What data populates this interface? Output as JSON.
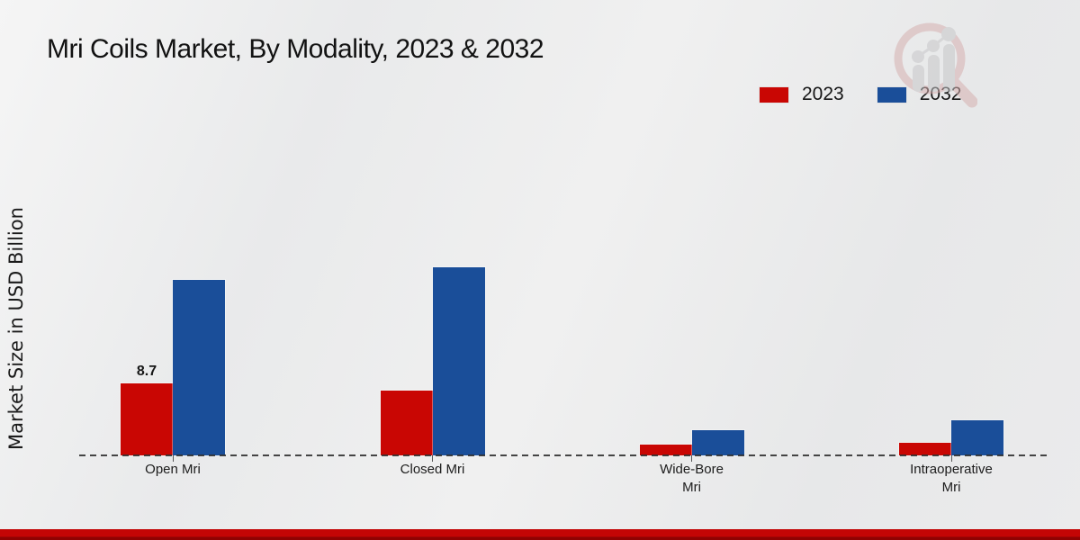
{
  "title": "Mri Coils Market, By Modality, 2023 & 2032",
  "y_axis_label": "Market Size in USD Billion",
  "watermark_icon": "magnifier-trend-chart-logo",
  "accent": {
    "bottom_bar_color": "#c30505",
    "series_2023_color": "#c90603",
    "series_2032_color": "#1a4e99"
  },
  "chart_data": {
    "type": "bar",
    "title": "Mri Coils Market, By Modality, 2023 & 2032",
    "ylabel": "Market Size in USD Billion",
    "xlabel": "",
    "categories": [
      "Open Mri",
      "Closed Mri",
      "Wide-Bore Mri",
      "Intraoperative Mri"
    ],
    "category_label_lines": [
      [
        "Open Mri"
      ],
      [
        "Closed Mri"
      ],
      [
        "Wide-Bore",
        "Mri"
      ],
      [
        "Intraoperative",
        "Mri"
      ]
    ],
    "series": [
      {
        "name": "2023",
        "color": "#c90603",
        "values": [
          8.7,
          7.8,
          1.3,
          1.5
        ]
      },
      {
        "name": "2032",
        "color": "#1a4e99",
        "values": [
          21.2,
          22.7,
          3.0,
          4.2
        ]
      }
    ],
    "bar_labels": [
      [
        "8.7",
        "",
        "",
        ""
      ],
      [
        "",
        "",
        "",
        ""
      ]
    ],
    "ylim": [
      0,
      25
    ],
    "grid": false,
    "legend_position": "top-right",
    "baseline_style": "dashed"
  }
}
